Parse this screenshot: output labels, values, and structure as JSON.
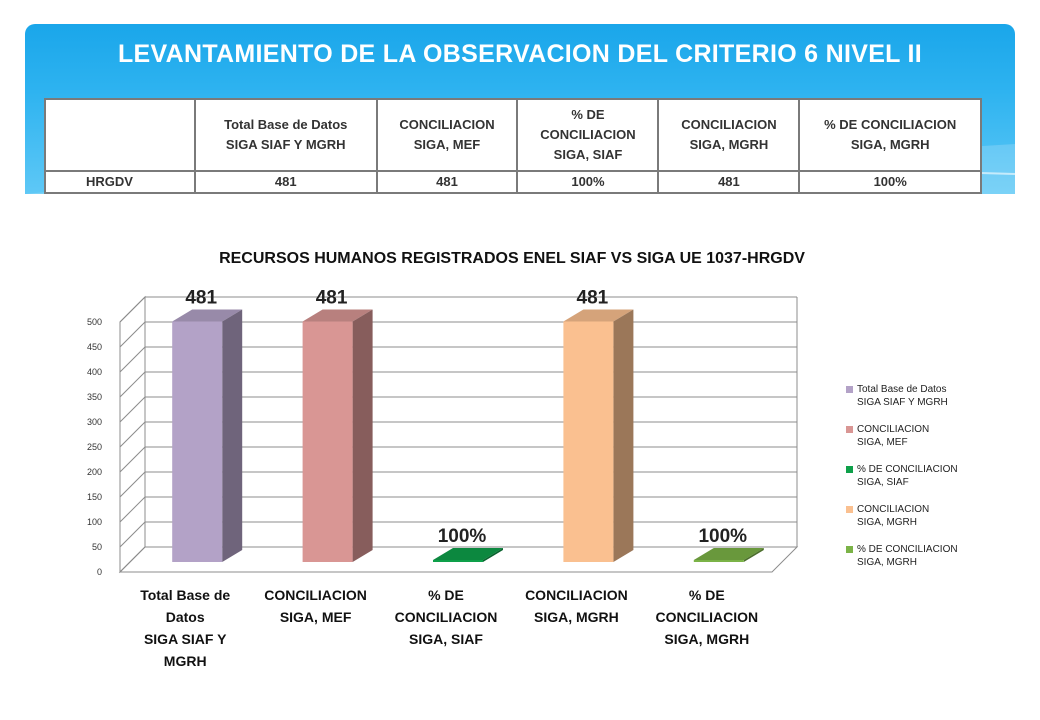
{
  "slide_title": "LEVANTAMIENTO DE LA OBSERVACION DEL CRITERIO 6 NIVEL II",
  "table": {
    "headers": [
      [
        ""
      ],
      [
        "Total Base de Datos",
        "SIGA SIAF Y MGRH"
      ],
      [
        "CONCILIACION",
        "SIGA, MEF"
      ],
      [
        "% DE",
        "CONCILIACION",
        "SIGA, SIAF"
      ],
      [
        "CONCILIACION",
        "SIGA, MGRH"
      ],
      [
        "% DE CONCILIACION",
        "SIGA, MGRH"
      ]
    ],
    "rows": [
      [
        "HRGDV",
        "481",
        "481",
        "100%",
        "481",
        "100%"
      ]
    ]
  },
  "chart_data": {
    "type": "bar",
    "title": "RECURSOS HUMANOS REGISTRADOS ENEL SIAF VS SIGA UE 1037-HRGDV",
    "categories": [
      [
        "Total Base de",
        "Datos",
        "SIGA SIAF Y",
        "MGRH"
      ],
      [
        "CONCILIACION",
        "SIGA, MEF"
      ],
      [
        "% DE",
        "CONCILIACION",
        "SIGA, SIAF"
      ],
      [
        "CONCILIACION",
        "SIGA, MGRH"
      ],
      [
        "% DE",
        "CONCILIACION",
        "SIGA, MGRH"
      ]
    ],
    "values": [
      481,
      481,
      1,
      481,
      1
    ],
    "data_labels": [
      "481",
      "481",
      "100%",
      "481",
      "100%"
    ],
    "colors": [
      "#b3a2c7",
      "#d99694",
      "#0ea04a",
      "#fac090",
      "#7bb347"
    ],
    "legend": [
      [
        "Total Base de Datos",
        "SIGA SIAF Y MGRH"
      ],
      [
        "CONCILIACION",
        "SIGA, MEF"
      ],
      [
        "% DE CONCILIACION",
        "SIGA, SIAF"
      ],
      [
        "CONCILIACION",
        " SIGA, MGRH"
      ],
      [
        "% DE CONCILIACION",
        "SIGA, MGRH"
      ]
    ],
    "ylim": [
      0,
      500
    ],
    "yticks": [
      0,
      50,
      100,
      150,
      200,
      250,
      300,
      350,
      400,
      450,
      500
    ],
    "grid": true,
    "legend_position": "right",
    "style": "3d-column"
  }
}
